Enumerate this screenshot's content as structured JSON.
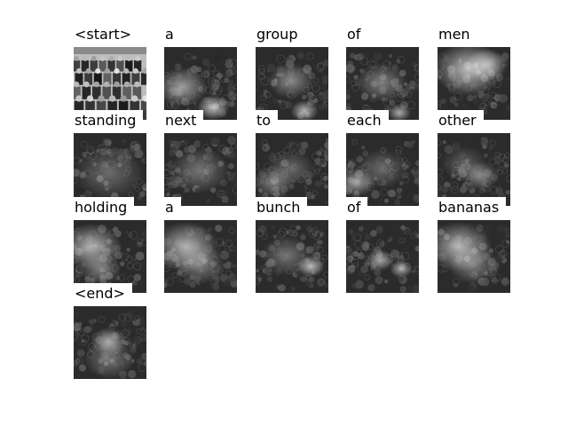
{
  "caption_words": [
    "<start>",
    "a",
    "group",
    "of",
    "men",
    "standing",
    "next",
    "to",
    "each",
    "other",
    "holding",
    "a",
    "bunch",
    "of",
    "bananas",
    "<end>"
  ],
  "colors": {
    "background": "#ffffff",
    "label_background": "#ffffff",
    "label_text": "#000000"
  },
  "panels": [
    {
      "word_index": 0,
      "kind": "original-photo"
    },
    {
      "word_index": 1,
      "kind": "attention-map",
      "focus": "lower-left-and-bottom"
    },
    {
      "word_index": 2,
      "kind": "attention-map",
      "focus": "center-and-bottom-right"
    },
    {
      "word_index": 3,
      "kind": "attention-map",
      "focus": "center-bottom"
    },
    {
      "word_index": 4,
      "kind": "attention-map",
      "focus": "top-wide"
    },
    {
      "word_index": 5,
      "kind": "attention-map",
      "focus": "diffuse"
    },
    {
      "word_index": 6,
      "kind": "attention-map",
      "focus": "diffuse-center"
    },
    {
      "word_index": 7,
      "kind": "attention-map",
      "focus": "lower-left"
    },
    {
      "word_index": 8,
      "kind": "attention-map",
      "focus": "left"
    },
    {
      "word_index": 9,
      "kind": "attention-map",
      "focus": "center-right"
    },
    {
      "word_index": 10,
      "kind": "attention-map",
      "focus": "upper-left"
    },
    {
      "word_index": 11,
      "kind": "attention-map",
      "focus": "upper-left-wide"
    },
    {
      "word_index": 12,
      "kind": "attention-map",
      "focus": "right-center"
    },
    {
      "word_index": 13,
      "kind": "attention-map",
      "focus": "center-and-right"
    },
    {
      "word_index": 14,
      "kind": "attention-map",
      "focus": "upper-left-wide"
    },
    {
      "word_index": 15,
      "kind": "attention-map",
      "focus": "center"
    }
  ]
}
